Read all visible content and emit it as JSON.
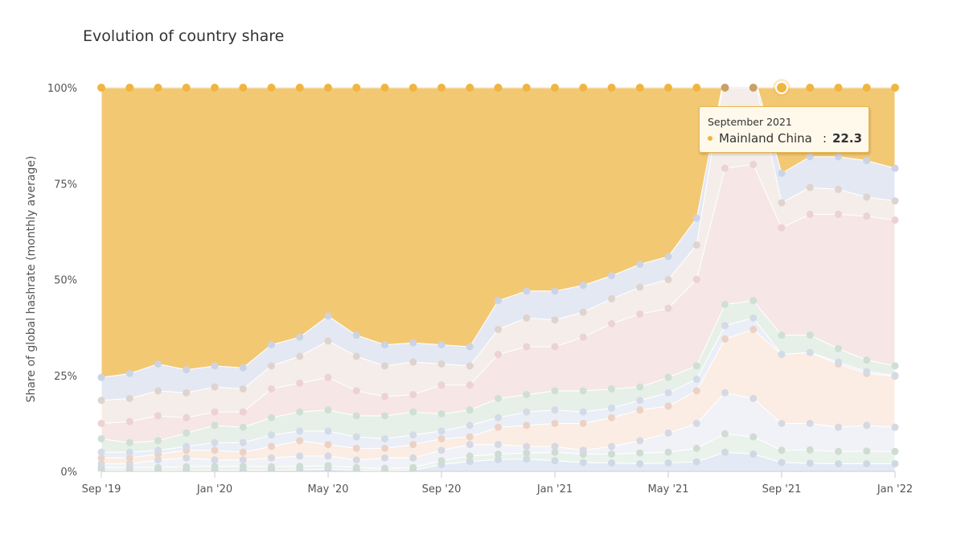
{
  "chart_data": {
    "type": "area",
    "stacking": "percent",
    "title": "Evolution of country share",
    "ylabel": "Share of global hashrate (monthly average)",
    "xlabel": "",
    "ylim": [
      0,
      100
    ],
    "y_ticks": [
      "0%",
      "25%",
      "50%",
      "75%",
      "100%"
    ],
    "x_ticks": [
      "Sep '19",
      "Jan '20",
      "May '20",
      "Sep '20",
      "Jan '21",
      "May '21",
      "Sep '21",
      "Jan '22"
    ],
    "x": [
      "2019-09",
      "2019-10",
      "2019-11",
      "2019-12",
      "2020-01",
      "2020-02",
      "2020-03",
      "2020-04",
      "2020-05",
      "2020-06",
      "2020-07",
      "2020-08",
      "2020-09",
      "2020-10",
      "2020-11",
      "2020-12",
      "2021-01",
      "2021-02",
      "2021-03",
      "2021-04",
      "2021-05",
      "2021-06",
      "2021-07",
      "2021-08",
      "2021-09",
      "2021-10",
      "2021-11",
      "2021-12",
      "2022-01"
    ],
    "cumulative_boundaries": [
      [
        0.2,
        0.2,
        0.2,
        0.2,
        0.3,
        0.3,
        0.3,
        0.4,
        0.6,
        0.3,
        0.2,
        0.3,
        1.8,
        2.6,
        3.1,
        3.2,
        2.8,
        2.3,
        2.2,
        2.0,
        2.2,
        2.5,
        5.0,
        4.5,
        2.3,
        2.1,
        2.0,
        2.0,
        2.0
      ],
      [
        1.0,
        1.0,
        1.0,
        1.2,
        1.3,
        1.3,
        1.2,
        1.3,
        1.5,
        1.0,
        0.8,
        1.0,
        2.8,
        4.0,
        4.5,
        4.8,
        5.0,
        4.5,
        4.5,
        4.8,
        5.0,
        6.0,
        9.8,
        9.0,
        5.5,
        5.6,
        5.2,
        5.3,
        5.2
      ],
      [
        2.0,
        2.0,
        3.0,
        3.5,
        3.0,
        3.0,
        3.5,
        4.0,
        4.0,
        3.0,
        3.5,
        3.5,
        5.5,
        7.0,
        7.0,
        6.5,
        6.5,
        5.5,
        6.5,
        8.0,
        10.0,
        12.5,
        20.5,
        19.0,
        12.5,
        12.5,
        11.5,
        12.0,
        11.5
      ],
      [
        3.5,
        3.5,
        4.5,
        5.5,
        5.5,
        5.0,
        6.5,
        8.0,
        7.0,
        6.0,
        6.0,
        7.0,
        8.5,
        9.0,
        11.5,
        12.0,
        12.5,
        12.5,
        14.0,
        16.0,
        17.0,
        21.0,
        34.5,
        37.0,
        30.5,
        31.0,
        28.0,
        25.5,
        24.8
      ],
      [
        5.0,
        5.0,
        5.5,
        6.5,
        7.5,
        7.5,
        9.5,
        10.5,
        10.5,
        9.0,
        8.5,
        9.5,
        10.5,
        12.0,
        14.0,
        15.5,
        16.0,
        15.5,
        16.5,
        18.5,
        20.5,
        24.0,
        38.0,
        40.0,
        30.5,
        31.0,
        28.5,
        26.0,
        25.0
      ],
      [
        8.5,
        7.5,
        8.0,
        10.0,
        12.0,
        11.5,
        14.0,
        15.5,
        16.0,
        14.5,
        14.5,
        15.5,
        15.0,
        16.0,
        19.0,
        20.0,
        21.0,
        21.0,
        21.5,
        22.0,
        24.5,
        27.5,
        43.5,
        44.5,
        35.5,
        35.5,
        32.0,
        29.0,
        27.5
      ],
      [
        12.5,
        13.0,
        14.5,
        14.0,
        15.5,
        15.5,
        21.5,
        23.0,
        24.5,
        21.0,
        19.5,
        20.0,
        22.5,
        22.5,
        30.5,
        32.5,
        32.5,
        35.0,
        38.5,
        41.0,
        42.5,
        50.0,
        79.0,
        80.0,
        63.5,
        67.0,
        67.0,
        66.5,
        65.5
      ],
      [
        18.5,
        19.0,
        21.0,
        20.5,
        22.0,
        21.5,
        27.5,
        30.0,
        34.0,
        30.0,
        27.5,
        28.5,
        28.0,
        27.5,
        37.0,
        40.0,
        39.5,
        41.5,
        45.0,
        48.0,
        50.0,
        59.0,
        104.0,
        104.0,
        70.0,
        74.0,
        73.5,
        71.5,
        70.5
      ],
      [
        24.5,
        25.5,
        28.0,
        26.5,
        27.5,
        27.0,
        33.0,
        35.0,
        40.5,
        35.5,
        33.0,
        33.5,
        33.0,
        32.5,
        44.5,
        47.0,
        47.0,
        48.5,
        51.0,
        54.0,
        56.0,
        66.0,
        104.0,
        104.0,
        77.7,
        82.0,
        82.0,
        81.0,
        79.0
      ],
      [
        100,
        100,
        100,
        100,
        100,
        100,
        100,
        100,
        100,
        100,
        100,
        100,
        100,
        100,
        100,
        100,
        100,
        100,
        100,
        100,
        100,
        100,
        100,
        100,
        100,
        100,
        100,
        100,
        100
      ]
    ],
    "layer_colors": [
      "#e3eaf6",
      "#e9f3ec",
      "#f1f2f7",
      "#fbede4",
      "#eaeef7",
      "#e6f0e8",
      "#f6e6e6",
      "#f4ede9",
      "#e4e8f3",
      "#f3c873"
    ],
    "dot_colors": [
      "#cfd8e3",
      "#cfdcd3",
      "#d6d8e3",
      "#ecd2c4",
      "#d3dbe8",
      "#cfe0d3",
      "#ecd2d2",
      "#dfd3ce",
      "#ccd3e3",
      "#f0b540"
    ],
    "highlight_index": 24,
    "tooltip": {
      "date": "September 2021",
      "series": "Mainland China",
      "value": "22.3"
    }
  }
}
